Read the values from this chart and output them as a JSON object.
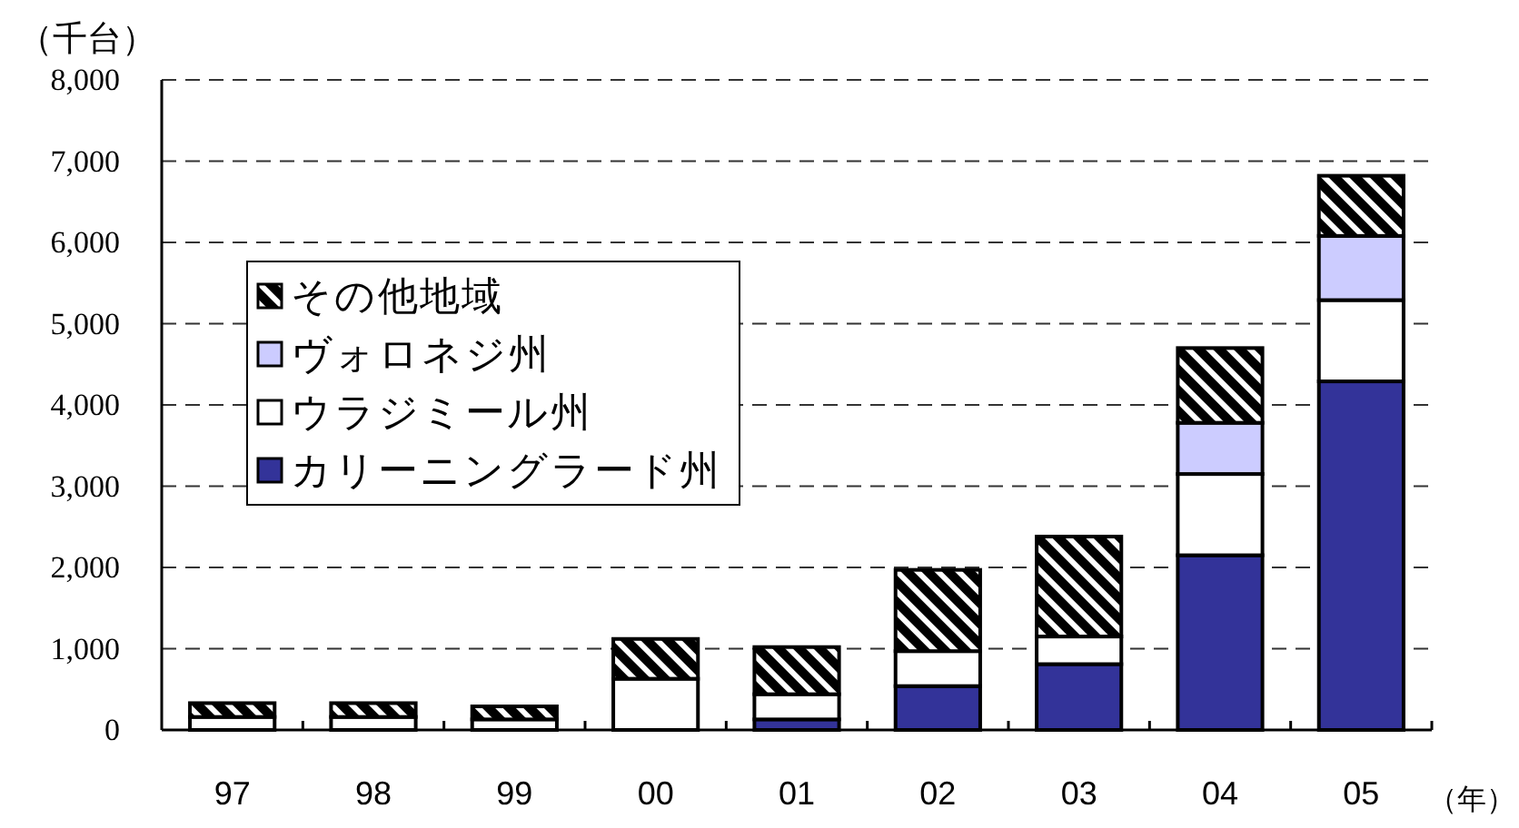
{
  "chart_data": {
    "type": "bar",
    "stacked": true,
    "ylabel": "（千台）",
    "xlabel": "（年）",
    "categories": [
      "97",
      "98",
      "99",
      "00",
      "01",
      "02",
      "03",
      "04",
      "05"
    ],
    "series": [
      {
        "name": "カリーニングラード州",
        "color": "#333399",
        "values": [
          null,
          null,
          null,
          null,
          130,
          540,
          810,
          2150,
          4290
        ]
      },
      {
        "name": "ウラジミール州",
        "color": "#ffffff",
        "values": [
          160,
          160,
          130,
          630,
          310,
          430,
          340,
          1000,
          1000
        ]
      },
      {
        "name": "ヴォロネジ州",
        "color": "#ccccff",
        "values": [
          null,
          null,
          null,
          null,
          null,
          null,
          null,
          630,
          790
        ]
      },
      {
        "name": "その他地域",
        "color": "#000000",
        "values": [
          170,
          170,
          160,
          490,
          580,
          1000,
          1230,
          920,
          740
        ]
      }
    ],
    "ylim": [
      0,
      8000
    ],
    "yticks": [
      0,
      {
        "value": 1000,
        "label": "1,000"
      },
      {
        "value": 2000,
        "label": "2,000"
      },
      {
        "value": 3000,
        "label": "3,000"
      },
      {
        "value": 4000,
        "label": "4,000"
      },
      {
        "value": 5000,
        "label": "5,000"
      },
      {
        "value": 6000,
        "label": "6,000"
      },
      {
        "value": 7000,
        "label": "7,000"
      },
      {
        "value": 8000,
        "label": "8,000"
      }
    ],
    "grid": "y",
    "legend": "left"
  }
}
